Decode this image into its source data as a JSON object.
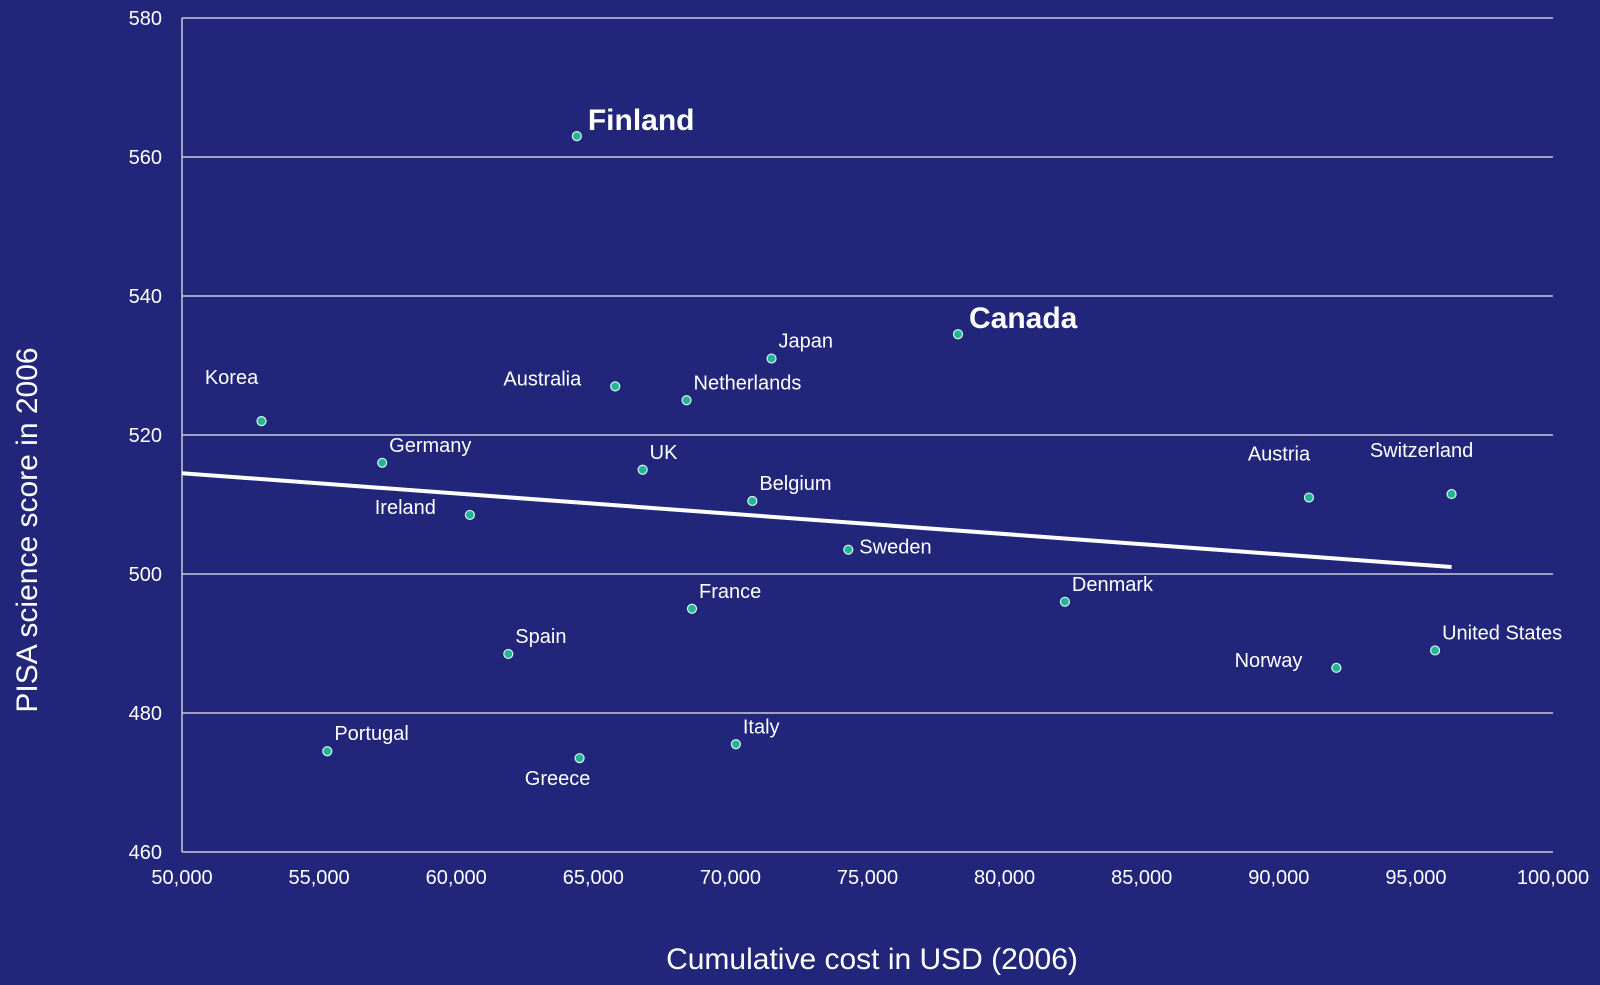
{
  "chart_data": {
    "type": "scatter",
    "title": "",
    "xlabel": "Cumulative cost in USD (2006)",
    "ylabel": "PISA science score in 2006",
    "xlim": [
      50000,
      100000
    ],
    "ylim": [
      460,
      580
    ],
    "x_ticks": [
      50000,
      55000,
      60000,
      65000,
      70000,
      75000,
      80000,
      85000,
      90000,
      95000,
      100000
    ],
    "x_tick_labels": [
      "50,000",
      "55,000",
      "60,000",
      "65,000",
      "70,000",
      "75,000",
      "80,000",
      "85,000",
      "90,000",
      "95,000",
      "100,000"
    ],
    "y_ticks": [
      460,
      480,
      500,
      520,
      540,
      560,
      580
    ],
    "y_tick_labels": [
      "460",
      "480",
      "500",
      "520",
      "540",
      "560",
      "580"
    ],
    "grid": "horizontal",
    "colors": {
      "background": "#21267a",
      "point": "#22b59a",
      "point_edge": "#dff5ee",
      "text": "#ffffff",
      "grid": "#c8c9dc",
      "trendline": "#ffffff"
    },
    "points": [
      {
        "label": "Finland",
        "x": 64400,
        "y": 563,
        "emphasis": true,
        "label_pos": "right"
      },
      {
        "label": "Canada",
        "x": 78300,
        "y": 534.5,
        "emphasis": true,
        "label_pos": "right"
      },
      {
        "label": "Japan",
        "x": 71500,
        "y": 531,
        "label_pos": "above-right"
      },
      {
        "label": "Australia",
        "x": 65800,
        "y": 527,
        "label_pos": "left"
      },
      {
        "label": "Netherlands",
        "x": 68400,
        "y": 525,
        "label_pos": "above-right"
      },
      {
        "label": "Korea",
        "x": 52900,
        "y": 522,
        "label_pos": "above-left"
      },
      {
        "label": "Germany",
        "x": 57300,
        "y": 516,
        "label_pos": "above-right"
      },
      {
        "label": "UK",
        "x": 66800,
        "y": 515,
        "label_pos": "above-right"
      },
      {
        "label": "Belgium",
        "x": 70800,
        "y": 510.5,
        "label_pos": "above-right"
      },
      {
        "label": "Ireland",
        "x": 60500,
        "y": 508.5,
        "label_pos": "left"
      },
      {
        "label": "Sweden",
        "x": 74300,
        "y": 503.5,
        "label_pos": "right"
      },
      {
        "label": "Austria",
        "x": 91100,
        "y": 511,
        "label_pos": "above-left"
      },
      {
        "label": "Switzerland",
        "x": 96300,
        "y": 511.5,
        "label_pos": "above-left"
      },
      {
        "label": "France",
        "x": 68600,
        "y": 495,
        "label_pos": "above-right"
      },
      {
        "label": "Denmark",
        "x": 82200,
        "y": 496,
        "label_pos": "above-right"
      },
      {
        "label": "Spain",
        "x": 61900,
        "y": 488.5,
        "label_pos": "above-right"
      },
      {
        "label": "United States",
        "x": 95700,
        "y": 489,
        "label_pos": "above-right"
      },
      {
        "label": "Norway",
        "x": 92100,
        "y": 486.5,
        "label_pos": "left"
      },
      {
        "label": "Portugal",
        "x": 55300,
        "y": 474.5,
        "label_pos": "above-right"
      },
      {
        "label": "Italy",
        "x": 70200,
        "y": 475.5,
        "label_pos": "above-right"
      },
      {
        "label": "Greece",
        "x": 64500,
        "y": 473.5,
        "label_pos": "below"
      }
    ],
    "trendline": {
      "x": [
        50000,
        96300
      ],
      "y": [
        514.5,
        501
      ]
    }
  }
}
